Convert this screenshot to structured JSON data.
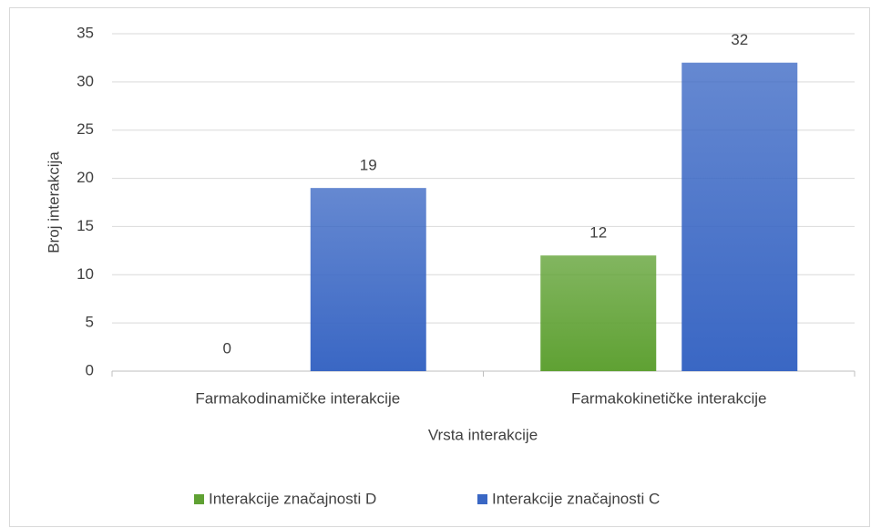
{
  "chart_data": {
    "type": "bar",
    "x_label": "Vrsta interakcije",
    "y_label": "Broj interakcija",
    "categories": [
      "Farmakodinamičke interakcije",
      "Farmakokinetičke interakcije"
    ],
    "series": [
      {
        "name": "Interakcije značajnosti D",
        "color": "#5fa133",
        "values": [
          0,
          12
        ]
      },
      {
        "name": "Interakcije značajnosti C",
        "color": "#3a67c4",
        "values": [
          19,
          32
        ]
      }
    ],
    "ylim": [
      0,
      35
    ],
    "yticks": [
      0,
      5,
      10,
      15,
      20,
      25,
      30,
      35
    ],
    "grid": true,
    "legend": "bottom"
  }
}
